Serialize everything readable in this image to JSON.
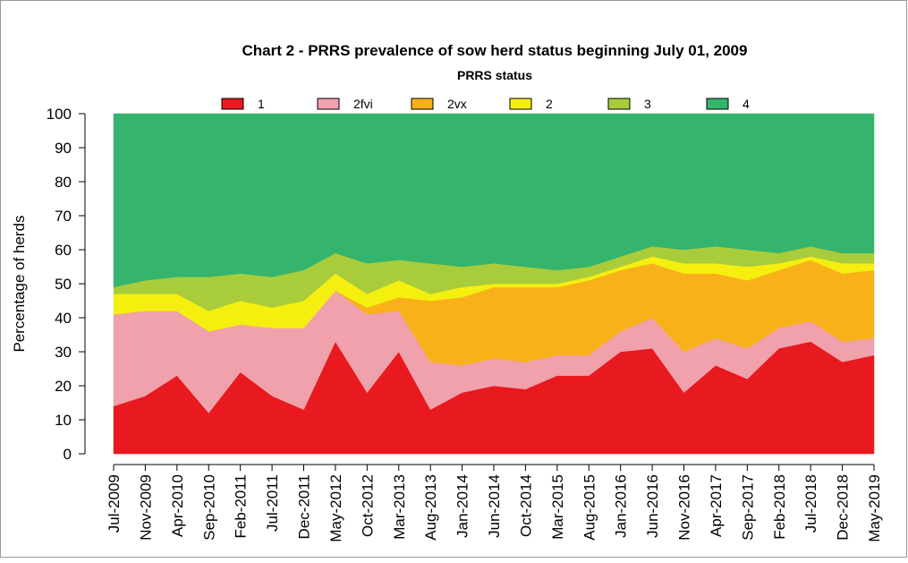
{
  "chart_data": {
    "type": "stacked_area",
    "title": "Chart 2 - PRRS prevalence of sow herd status beginning July 01, 2009",
    "legend_title": "PRRS status",
    "y_label": "Percentage of herds",
    "categories": [
      "Jul-2009",
      "Nov-2009",
      "Apr-2010",
      "Sep-2010",
      "Feb-2011",
      "Jul-2011",
      "Dec-2011",
      "May-2012",
      "Oct-2012",
      "Mar-2013",
      "Aug-2013",
      "Jan-2014",
      "Jun-2014",
      "Oct-2014",
      "Mar-2015",
      "Aug-2015",
      "Jan-2016",
      "Jun-2016",
      "Nov-2016",
      "Apr-2017",
      "Sep-2017",
      "Feb-2018",
      "Jul-2018",
      "Dec-2018",
      "May-2019"
    ],
    "series": [
      {
        "name": "1",
        "color": "#e8191f",
        "values": [
          14,
          17,
          23,
          12,
          24,
          17,
          13,
          33,
          18,
          30,
          13,
          18,
          20,
          19,
          23,
          23,
          30,
          31,
          18,
          26,
          22,
          31,
          33,
          27,
          29
        ]
      },
      {
        "name": "2fvi",
        "color": "#f0a1ab",
        "values": [
          27,
          25,
          19,
          24,
          14,
          20,
          24,
          15,
          23,
          12,
          14,
          8,
          8,
          8,
          6,
          6,
          6,
          9,
          12,
          8,
          9,
          6,
          6,
          6,
          5
        ]
      },
      {
        "name": "2vx",
        "color": "#f8b119",
        "values": [
          0,
          0,
          0,
          0,
          0,
          0,
          0,
          0,
          2,
          4,
          18,
          20,
          21,
          22,
          20,
          22,
          18,
          16,
          23,
          19,
          20,
          17,
          18,
          20,
          20
        ]
      },
      {
        "name": "2",
        "color": "#f5ef10",
        "values": [
          6,
          5,
          5,
          6,
          7,
          6,
          8,
          5,
          4,
          5,
          2,
          3,
          1,
          1,
          1,
          1,
          1,
          2,
          3,
          3,
          4,
          2,
          1,
          3,
          2
        ]
      },
      {
        "name": "3",
        "color": "#a9cc3b",
        "values": [
          2,
          4,
          5,
          10,
          8,
          9,
          9,
          6,
          9,
          6,
          9,
          6,
          6,
          5,
          4,
          3,
          3,
          3,
          4,
          5,
          5,
          3,
          3,
          3,
          3
        ]
      },
      {
        "name": "4",
        "color": "#35b46e",
        "values": [
          51,
          49,
          48,
          48,
          47,
          48,
          46,
          41,
          44,
          43,
          44,
          45,
          44,
          45,
          46,
          45,
          42,
          39,
          40,
          39,
          40,
          41,
          39,
          41,
          41
        ]
      }
    ],
    "ylim": [
      0,
      100
    ],
    "yticks": [
      0,
      10,
      20,
      30,
      40,
      50,
      60,
      70,
      80,
      90,
      100
    ]
  }
}
